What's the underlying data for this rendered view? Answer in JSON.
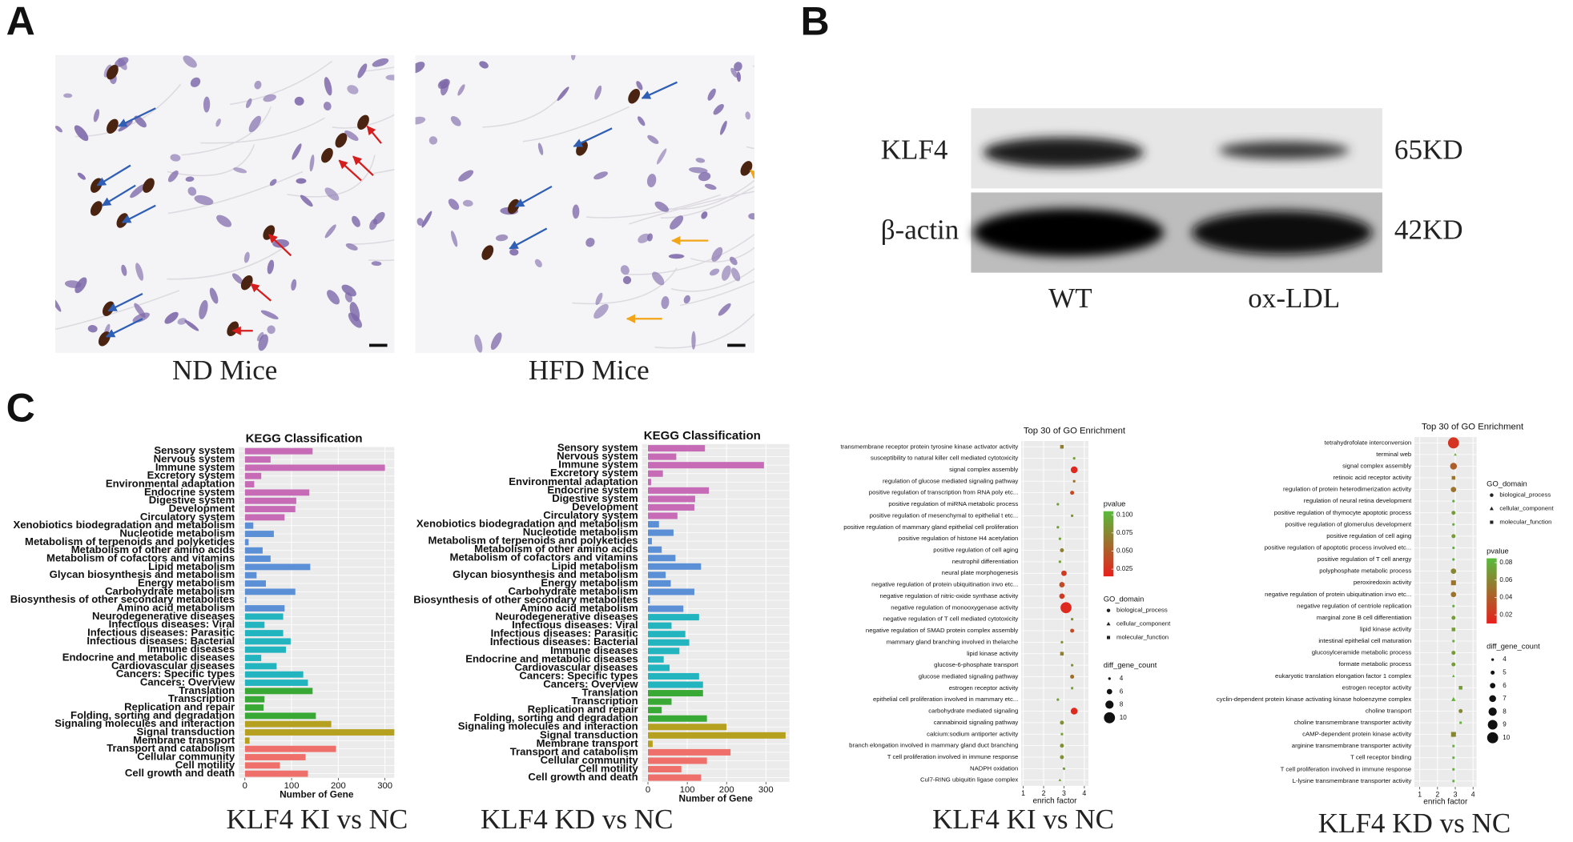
{
  "panel_labels": [
    "A",
    "B",
    "C"
  ],
  "micrographs": [
    "ND Mice",
    "HFD Mice"
  ],
  "western_blot": {
    "bands": [
      "KLF4",
      "β-actin"
    ],
    "sizes": [
      "65KD",
      "42KD"
    ],
    "groups": [
      "WT",
      "ox-LDL"
    ]
  },
  "chart_data": [
    {
      "type": "hbar",
      "title": "KEGG Classification",
      "xlabel": "Number of Gene",
      "caption": "KLF4 KI vs NC",
      "categories": [
        "Sensory system",
        "Nervous system",
        "Immune system",
        "Excretory system",
        "Environmental adaptation",
        "Endocrine system",
        "Digestive system",
        "Development",
        "Circulatory system",
        "Xenobiotics biodegradation and metabolism",
        "Nucleotide metabolism",
        "Metabolism of terpenoids and polyketides",
        "Metabolism of other amino acids",
        "Metabolism of cofactors and vitamins",
        "Lipid metabolism",
        "Glycan biosynthesis and metabolism",
        "Energy metabolism",
        "Carbohydrate metabolism",
        "Biosynthesis of other secondary metabolites",
        "Amino acid metabolism",
        "Neurodegenerative diseases",
        "Infectious diseases: Viral",
        "Infectious diseases: Parasitic",
        "Infectious diseases: Bacterial",
        "Immune diseases",
        "Endocrine and metabolic diseases",
        "Cardiovascular diseases",
        "Cancers: Specific types",
        "Cancers: Overview",
        "Translation",
        "Transcription",
        "Replication and repair",
        "Folding, sorting and degradation",
        "Signaling molecules and interaction",
        "Signal transduction",
        "Membrane transport",
        "Transport and catabolism",
        "Cellular community",
        "Cell motility",
        "Cell growth and death"
      ],
      "values": [
        145,
        55,
        300,
        35,
        20,
        138,
        110,
        108,
        85,
        18,
        62,
        8,
        38,
        55,
        140,
        25,
        45,
        108,
        3,
        85,
        82,
        42,
        82,
        98,
        88,
        35,
        68,
        125,
        135,
        145,
        42,
        40,
        152,
        185,
        320,
        10,
        195,
        130,
        75,
        135
      ],
      "colors": [
        "#c76bb7",
        "#c76bb7",
        "#c76bb7",
        "#c76bb7",
        "#c76bb7",
        "#c76bb7",
        "#c76bb7",
        "#c76bb7",
        "#c76bb7",
        "#5b8fd6",
        "#5b8fd6",
        "#5b8fd6",
        "#5b8fd6",
        "#5b8fd6",
        "#5b8fd6",
        "#5b8fd6",
        "#5b8fd6",
        "#5b8fd6",
        "#5b8fd6",
        "#5b8fd6",
        "#22b5c0",
        "#22b5c0",
        "#22b5c0",
        "#22b5c0",
        "#22b5c0",
        "#22b5c0",
        "#22b5c0",
        "#22b5c0",
        "#22b5c0",
        "#39a935",
        "#39a935",
        "#39a935",
        "#39a935",
        "#b5a11f",
        "#b5a11f",
        "#b5a11f",
        "#ef6f6a",
        "#ef6f6a",
        "#ef6f6a",
        "#ef6f6a"
      ],
      "xlim": [
        -13,
        320
      ],
      "xticks": [
        0,
        100,
        200,
        300
      ],
      "grid": true
    },
    {
      "type": "hbar",
      "title": "KEGG Classification",
      "xlabel": "Number of Gene",
      "caption": "KLF4 KD vs NC",
      "categories": [
        "Sensory system",
        "Nervous system",
        "Immune system",
        "Excretory system",
        "Environmental adaptation",
        "Endocrine system",
        "Digestive system",
        "Development",
        "Circulatory system",
        "Xenobiotics biodegradation and metabolism",
        "Nucleotide metabolism",
        "Metabolism of terpenoids and polyketides",
        "Metabolism of other amino acids",
        "Metabolism of cofactors and vitamins",
        "Lipid metabolism",
        "Glycan biosynthesis and metabolism",
        "Energy metabolism",
        "Carbohydrate metabolism",
        "Biosynthesis of other secondary metabolites",
        "Amino acid metabolism",
        "Neurodegenerative diseases",
        "Infectious diseases: Viral",
        "Infectious diseases: Parasitic",
        "Infectious diseases: Bacterial",
        "Immune diseases",
        "Endocrine and metabolic diseases",
        "Cardiovascular diseases",
        "Cancers: Specific types",
        "Cancers: Overview",
        "Translation",
        "Transcription",
        "Replication and repair",
        "Folding, sorting and degradation",
        "Signaling molecules and interaction",
        "Signal transduction",
        "Membrane transport",
        "Transport and catabolism",
        "Cellular community",
        "Cell motility",
        "Cell growth and death"
      ],
      "values": [
        145,
        72,
        295,
        38,
        8,
        155,
        120,
        118,
        75,
        28,
        65,
        10,
        35,
        70,
        135,
        45,
        58,
        118,
        5,
        90,
        130,
        60,
        95,
        105,
        80,
        40,
        55,
        130,
        140,
        140,
        60,
        35,
        150,
        200,
        350,
        12,
        210,
        150,
        85,
        135
      ],
      "colors": [
        "#c76bb7",
        "#c76bb7",
        "#c76bb7",
        "#c76bb7",
        "#c76bb7",
        "#c76bb7",
        "#c76bb7",
        "#c76bb7",
        "#c76bb7",
        "#5b8fd6",
        "#5b8fd6",
        "#5b8fd6",
        "#5b8fd6",
        "#5b8fd6",
        "#5b8fd6",
        "#5b8fd6",
        "#5b8fd6",
        "#5b8fd6",
        "#5b8fd6",
        "#5b8fd6",
        "#22b5c0",
        "#22b5c0",
        "#22b5c0",
        "#22b5c0",
        "#22b5c0",
        "#22b5c0",
        "#22b5c0",
        "#22b5c0",
        "#22b5c0",
        "#39a935",
        "#39a935",
        "#39a935",
        "#39a935",
        "#b5a11f",
        "#b5a11f",
        "#b5a11f",
        "#ef6f6a",
        "#ef6f6a",
        "#ef6f6a",
        "#ef6f6a"
      ],
      "xlim": [
        -15,
        360
      ],
      "xticks": [
        0,
        100,
        200,
        300
      ],
      "grid": true
    },
    {
      "type": "dot",
      "title": "Top 30 of GO Enrichment",
      "xlabel": "enrich factor",
      "caption": "KLF4 KI vs NC",
      "categories": [
        "transmembrane receptor protein tyrosine kinase activator activity",
        "susceptibility to natural killer cell mediated cytotoxicity",
        "signal complex assembly",
        "regulation of glucose mediated signaling pathway",
        "positive regulation of transcription from RNA poly etc...",
        "positive regulation of miRNA metabolic process",
        "positive regulation of mesenchymal to epithelial t etc...",
        "positive regulation of mammary gland epithelial cell proliferation",
        "positive regulation of histone H4 acetylation",
        "positive regulation of cell aging",
        "neutrophil differentiation",
        "neural plate morphogenesis",
        "negative regulation of protein ubiquitination invo etc...",
        "negative regulation of nitric-oxide synthase activity",
        "negative regulation of monooxygenase activity",
        "negative regulation of T cell mediated cytotoxicity",
        "negative regulation of SMAD protein complex assembly",
        "mammary gland branching involved in thelarche",
        "lipid kinase activity",
        "glucose-6-phosphate transport",
        "glucose mediated signaling pathway",
        "estrogen receptor activity",
        "epithelial cell proliferation involved in mammary etc...",
        "carbohydrate mediated signaling",
        "cannabinoid signaling pathway",
        "calcium:sodium antiporter activity",
        "branch elongation involved in mammary gland duct branching",
        "T cell proliferation involved in immune response",
        "NADPH oxidation",
        "Cul7-RING ubiquitin ligase complex"
      ],
      "values": [
        2.9,
        3.5,
        3.5,
        3.5,
        3.4,
        2.7,
        3.4,
        2.7,
        2.8,
        2.9,
        2.8,
        3.0,
        2.9,
        2.9,
        3.1,
        3.4,
        3.4,
        2.9,
        2.9,
        3.4,
        3.4,
        3.4,
        2.7,
        3.5,
        2.9,
        2.9,
        2.9,
        2.9,
        3.0,
        2.8
      ],
      "pvalues": [
        0.07,
        0.09,
        0.02,
        0.06,
        0.04,
        0.09,
        0.08,
        0.09,
        0.09,
        0.07,
        0.09,
        0.03,
        0.04,
        0.03,
        0.02,
        0.08,
        0.04,
        0.08,
        0.07,
        0.08,
        0.06,
        0.09,
        0.09,
        0.02,
        0.08,
        0.09,
        0.08,
        0.08,
        0.09,
        0.09
      ],
      "counts": [
        5,
        4,
        7,
        4,
        5,
        4,
        4,
        4,
        4,
        5,
        4,
        6,
        6,
        6,
        10,
        4,
        5,
        4,
        5,
        4,
        5,
        4,
        4,
        7,
        5,
        4,
        5,
        5,
        4,
        4
      ],
      "domains": [
        2,
        0,
        0,
        0,
        0,
        0,
        0,
        0,
        0,
        0,
        0,
        0,
        0,
        0,
        0,
        0,
        0,
        0,
        2,
        0,
        0,
        2,
        0,
        0,
        0,
        2,
        0,
        0,
        0,
        1
      ],
      "xlim": [
        0.9,
        4.2
      ],
      "xticks": [
        1,
        2,
        3,
        4
      ],
      "grid": true,
      "pvalue_legend": {
        "title": "pvalue",
        "lim": [
          0.015,
          0.105
        ],
        "ticks": [
          {
            "value": 0.1,
            "label": "0.100"
          },
          0.075,
          {
            "value": 0.05,
            "label": "0.050"
          },
          0.025
        ],
        "colors": [
          "#e8201c",
          "#58bb3c"
        ]
      },
      "domain_legend": {
        "title": "GO_domain",
        "labels": [
          "biological_process",
          "cellular_component",
          "molecular_function"
        ]
      },
      "size_legend": {
        "title": "diff_gene_count",
        "ticks": [
          4,
          6,
          8,
          10
        ]
      }
    },
    {
      "type": "dot",
      "title": "Top 30 of GO Enrichment",
      "xlabel": "enrich factor",
      "caption": "KLF4 KD vs NC",
      "categories": [
        "tetrahydrofolate interconversion",
        "terminal web",
        "signal complex assembly",
        "retinoic acid receptor activity",
        "regulation of protein heterodimerization activity",
        "regulation of neural retina development",
        "positive regulation of thymocyte apoptotic process",
        "positive regulation of glomerulus development",
        "positive regulation of cell aging",
        "positive regulation of apoptotic process involved  etc...",
        "positive regulation of T cell anergy",
        "polyphosphate metabolic process",
        "peroxiredoxin activity",
        "negative regulation of protein ubiquitination invo etc...",
        "negative regulation of centriole replication",
        "marginal zone B cell differentiation",
        "lipid kinase activity",
        "intestinal epithelial cell maturation",
        "glucosylceramide metabolic process",
        "formate metabolic process",
        "eukaryotic translation elongation factor 1 complex",
        "estrogen receptor activity",
        "cyclin-dependent protein kinase activating kinase holoenzyme complex",
        "choline transport",
        "choline transmembrane transporter activity",
        "cAMP-dependent protein kinase activity",
        "arginine transmembrane transporter activity",
        "T cell receptor binding",
        "T cell proliferation involved in immune response",
        "L-lysine transmembrane transporter activity"
      ],
      "values": [
        2.9,
        3.0,
        2.9,
        2.9,
        2.9,
        2.9,
        2.9,
        2.9,
        2.9,
        2.9,
        2.9,
        2.9,
        2.9,
        2.9,
        2.9,
        2.9,
        2.9,
        2.9,
        2.9,
        2.9,
        2.9,
        3.3,
        2.9,
        3.3,
        3.3,
        2.9,
        2.9,
        2.9,
        2.9,
        2.9
      ],
      "pvalues": [
        0.02,
        0.08,
        0.04,
        0.05,
        0.05,
        0.08,
        0.07,
        0.08,
        0.07,
        0.08,
        0.08,
        0.06,
        0.05,
        0.05,
        0.08,
        0.07,
        0.07,
        0.08,
        0.07,
        0.07,
        0.08,
        0.07,
        0.08,
        0.06,
        0.08,
        0.06,
        0.08,
        0.08,
        0.08,
        0.08
      ],
      "counts": [
        10,
        4,
        7,
        5,
        6,
        4,
        5,
        4,
        5,
        4,
        4,
        6,
        6,
        6,
        4,
        5,
        5,
        4,
        5,
        5,
        4,
        5,
        5,
        5,
        4,
        6,
        4,
        4,
        4,
        4
      ],
      "domains": [
        0,
        1,
        0,
        2,
        0,
        0,
        0,
        0,
        0,
        0,
        0,
        0,
        2,
        0,
        0,
        0,
        2,
        0,
        0,
        0,
        1,
        2,
        1,
        0,
        2,
        2,
        2,
        2,
        0,
        2
      ],
      "xlim": [
        0.7,
        4.2
      ],
      "xticks": [
        1,
        2,
        3,
        4
      ],
      "grid": true,
      "pvalue_legend": {
        "title": "pvalue",
        "lim": [
          0.01,
          0.085
        ],
        "ticks": [
          0.08,
          0.06,
          0.04,
          0.02
        ],
        "colors": [
          "#e8201c",
          "#58bb3c"
        ]
      },
      "domain_legend": {
        "title": "GO_domain",
        "labels": [
          "biological_process",
          "cellular_component",
          "molecular_function"
        ]
      },
      "size_legend": {
        "title": "diff_gene_count",
        "ticks": [
          4,
          5,
          6,
          7,
          8,
          9,
          10
        ]
      }
    }
  ]
}
